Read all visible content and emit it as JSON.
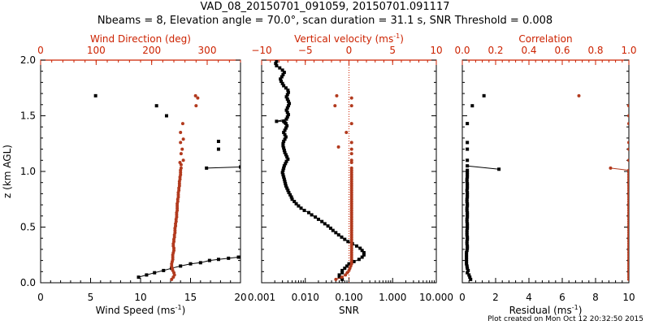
{
  "header": {
    "title": "VAD_08_20150701_091059, 20150701.091117",
    "subtitle": "Nbeams = 8, Elevation angle = 70.0°, scan duration = 31.1 s, SNR Threshold = 0.008"
  },
  "footer": {
    "created": "Plot created on Mon Oct 12 20:32:50 2015"
  },
  "colors": {
    "red_axis": "#cc2200",
    "black_series": "#000000",
    "red_series": "#b23a1e"
  },
  "chart_data": [
    {
      "type": "scatter",
      "ylabel": "z (km AGL)",
      "ylim": [
        0.0,
        2.0
      ],
      "y_ticks": [
        "0.0",
        "0.5",
        "1.0",
        "1.5",
        "2.0"
      ],
      "bottom_axis": {
        "label": "Wind Speed (ms",
        "superscript": "-1",
        "close": ")",
        "lim": [
          0,
          20
        ],
        "ticks": [
          "0",
          "5",
          "10",
          "15",
          "20"
        ]
      },
      "top_axis": {
        "label": "Wind Direction (deg)",
        "lim": [
          0,
          360
        ],
        "ticks": [
          "0",
          "100",
          "200",
          "300"
        ],
        "tick_values": [
          0,
          100,
          200,
          300
        ]
      },
      "series": [
        {
          "axis": "bottom",
          "color": "black",
          "connected": true,
          "x": [
            9.8,
            10.6,
            11.4,
            12.3,
            13.1,
            14.0,
            15.0,
            16.0,
            16.9,
            17.8,
            18.8,
            19.8,
            20.0
          ],
          "y": [
            0.05,
            0.07,
            0.09,
            0.11,
            0.13,
            0.15,
            0.17,
            0.18,
            0.2,
            0.21,
            0.22,
            0.23,
            0.23
          ]
        },
        {
          "axis": "bottom",
          "color": "black",
          "connected": true,
          "x": [
            16.6,
            20.0
          ],
          "y": [
            1.03,
            1.04
          ]
        },
        {
          "axis": "bottom",
          "color": "black",
          "connected": false,
          "x": [
            5.5,
            11.6,
            12.6,
            17.8,
            17.8
          ],
          "y": [
            1.68,
            1.59,
            1.5,
            1.27,
            1.2
          ]
        },
        {
          "axis": "top",
          "color": "red",
          "connected": true,
          "x": [
            236,
            239,
            241,
            240,
            238,
            237,
            236,
            236,
            237,
            238,
            238,
            238,
            239,
            240,
            240,
            239,
            239,
            240,
            240,
            241,
            241,
            242,
            242,
            242,
            243,
            243,
            244,
            244,
            245,
            245,
            245,
            246,
            246,
            246,
            246,
            247,
            247,
            248,
            248,
            248,
            249,
            249,
            250,
            250,
            250,
            251,
            251,
            252,
            252,
            252,
            253
          ],
          "y": [
            0.03,
            0.05,
            0.07,
            0.09,
            0.11,
            0.13,
            0.15,
            0.17,
            0.19,
            0.21,
            0.23,
            0.25,
            0.27,
            0.29,
            0.31,
            0.33,
            0.35,
            0.37,
            0.39,
            0.41,
            0.43,
            0.45,
            0.47,
            0.49,
            0.51,
            0.53,
            0.55,
            0.57,
            0.59,
            0.61,
            0.63,
            0.65,
            0.67,
            0.69,
            0.71,
            0.73,
            0.75,
            0.77,
            0.79,
            0.81,
            0.83,
            0.85,
            0.87,
            0.89,
            0.91,
            0.93,
            0.95,
            0.97,
            0.99,
            1.01,
            1.03
          ]
        },
        {
          "axis": "top",
          "color": "red",
          "connected": false,
          "x": [
            279,
            283,
            280,
            256,
            252,
            257,
            252,
            255,
            253,
            257,
            251,
            253
          ],
          "y": [
            1.68,
            1.66,
            1.59,
            1.43,
            1.35,
            1.29,
            1.26,
            1.2,
            1.16,
            1.1,
            1.08,
            1.06
          ]
        }
      ]
    },
    {
      "type": "scatter",
      "bottom_axis": {
        "label": "SNR",
        "scale": "log",
        "lim": [
          0.001,
          10
        ],
        "ticks": [
          "0.001",
          "0.010",
          "0.100",
          "1.000",
          "10.000"
        ],
        "tick_values": [
          0.001,
          0.01,
          0.1,
          1,
          10
        ]
      },
      "top_axis": {
        "label": "Vertical velocity (ms",
        "superscript": "-1",
        "close": ")",
        "lim": [
          -10,
          10
        ],
        "ticks": [
          "−10",
          "−5",
          "0",
          "5",
          "10"
        ],
        "tick_values": [
          -10,
          -5,
          0,
          5,
          10
        ],
        "reference_line": 0
      },
      "series": [
        {
          "axis": "bottom",
          "color": "black",
          "connected": true,
          "x": [
            0.07,
            0.06,
            0.06,
            0.07,
            0.07,
            0.08,
            0.09,
            0.1,
            0.13,
            0.17,
            0.2,
            0.22,
            0.22,
            0.2,
            0.18,
            0.15,
            0.12,
            0.095,
            0.08,
            0.068,
            0.058,
            0.05,
            0.043,
            0.038,
            0.033,
            0.028,
            0.024,
            0.02,
            0.017,
            0.014,
            0.012,
            0.0095,
            0.008,
            0.007,
            0.0062,
            0.0056,
            0.005,
            0.0048,
            0.0045,
            0.0042,
            0.004,
            0.0038,
            0.0036,
            0.0035,
            0.0034,
            0.0033,
            0.0032,
            0.0031,
            0.003,
            0.0031,
            0.0032,
            0.0033,
            0.0035,
            0.0037,
            0.004,
            0.0038,
            0.0036,
            0.0034,
            0.0033,
            0.0032,
            0.0031,
            0.0031,
            0.0032,
            0.0034,
            0.0036,
            0.0034,
            0.0032,
            0.0034,
            0.0036,
            0.0038,
            0.0036,
            0.0034,
            0.0032,
            0.0022,
            0.0037,
            0.0039,
            0.0041,
            0.0039,
            0.0037,
            0.0039,
            0.0041,
            0.0043,
            0.0041,
            0.0039,
            0.0037,
            0.0039,
            0.0041,
            0.004,
            0.0036,
            0.0032,
            0.003,
            0.0028,
            0.0027,
            0.0029,
            0.0031,
            0.0033,
            0.003,
            0.0026,
            0.0022,
            0.0021,
            0.0022
          ],
          "y": [
            0.03,
            0.05,
            0.07,
            0.09,
            0.11,
            0.13,
            0.15,
            0.17,
            0.19,
            0.21,
            0.23,
            0.25,
            0.27,
            0.29,
            0.31,
            0.33,
            0.35,
            0.37,
            0.39,
            0.41,
            0.43,
            0.45,
            0.47,
            0.49,
            0.51,
            0.53,
            0.55,
            0.57,
            0.59,
            0.61,
            0.63,
            0.65,
            0.67,
            0.69,
            0.71,
            0.73,
            0.75,
            0.77,
            0.79,
            0.81,
            0.83,
            0.85,
            0.87,
            0.89,
            0.91,
            0.93,
            0.95,
            0.97,
            0.99,
            1.01,
            1.03,
            1.05,
            1.07,
            1.09,
            1.11,
            1.13,
            1.15,
            1.17,
            1.19,
            1.21,
            1.23,
            1.25,
            1.27,
            1.29,
            1.31,
            1.33,
            1.35,
            1.37,
            1.39,
            1.41,
            1.43,
            1.44,
            1.45,
            1.45,
            1.47,
            1.49,
            1.51,
            1.53,
            1.55,
            1.57,
            1.59,
            1.61,
            1.63,
            1.65,
            1.67,
            1.69,
            1.71,
            1.73,
            1.75,
            1.77,
            1.79,
            1.81,
            1.83,
            1.85,
            1.87,
            1.89,
            1.91,
            1.93,
            1.95,
            1.97,
            1.99
          ]
        },
        {
          "axis": "top",
          "color": "red",
          "connected": true,
          "x": [
            -1.5,
            -0.8,
            -0.4,
            -0.2,
            0.0,
            0.1,
            0.2,
            0.3,
            0.3,
            0.3,
            0.3,
            0.3,
            0.3,
            0.3,
            0.3,
            0.3,
            0.3,
            0.3,
            0.3,
            0.3,
            0.3,
            0.3,
            0.3,
            0.3,
            0.3,
            0.3,
            0.3,
            0.3,
            0.3,
            0.3,
            0.3,
            0.3,
            0.3,
            0.3,
            0.3,
            0.3,
            0.3,
            0.3,
            0.3,
            0.3,
            0.3,
            0.3,
            0.3,
            0.3,
            0.3,
            0.3,
            0.3,
            0.3,
            0.3,
            0.3,
            0.3
          ],
          "y": [
            0.03,
            0.05,
            0.07,
            0.09,
            0.11,
            0.13,
            0.15,
            0.17,
            0.19,
            0.21,
            0.23,
            0.25,
            0.27,
            0.29,
            0.31,
            0.33,
            0.35,
            0.37,
            0.39,
            0.41,
            0.43,
            0.45,
            0.47,
            0.49,
            0.51,
            0.53,
            0.55,
            0.57,
            0.59,
            0.61,
            0.63,
            0.65,
            0.67,
            0.69,
            0.71,
            0.73,
            0.75,
            0.77,
            0.79,
            0.81,
            0.83,
            0.85,
            0.87,
            0.89,
            0.91,
            0.93,
            0.95,
            0.97,
            0.99,
            1.01,
            1.03
          ]
        },
        {
          "axis": "top",
          "color": "red",
          "connected": false,
          "x": [
            -1.4,
            0.3,
            -1.6,
            0.3,
            0.3,
            -0.3,
            0.3,
            -1.2,
            0.3,
            0.3,
            0.3,
            0.3
          ],
          "y": [
            1.68,
            1.66,
            1.59,
            1.59,
            1.43,
            1.35,
            1.26,
            1.22,
            1.2,
            1.16,
            1.1,
            1.08
          ]
        }
      ]
    },
    {
      "type": "scatter",
      "bottom_axis": {
        "label": "Residual (ms",
        "superscript": "-1",
        "close": ")",
        "lim": [
          0,
          10
        ],
        "ticks": [
          "0",
          "2",
          "4",
          "6",
          "8",
          "10"
        ],
        "tick_values": [
          0,
          2,
          4,
          6,
          8,
          10
        ]
      },
      "top_axis": {
        "label": "Correlation",
        "lim": [
          0,
          1
        ],
        "ticks": [
          "0.0",
          "0.2",
          "0.4",
          "0.6",
          "0.8",
          "1.0"
        ],
        "tick_values": [
          0,
          0.2,
          0.4,
          0.6,
          0.8,
          1.0
        ]
      },
      "series": [
        {
          "axis": "bottom",
          "color": "black",
          "connected": true,
          "x": [
            0.5,
            0.45,
            0.4,
            0.3,
            0.35,
            0.3,
            0.28,
            0.25,
            0.25,
            0.25,
            0.25,
            0.25,
            0.25,
            0.28,
            0.3,
            0.3,
            0.28,
            0.28,
            0.3,
            0.3,
            0.28,
            0.28,
            0.28,
            0.3,
            0.3,
            0.3,
            0.28,
            0.28,
            0.3,
            0.3,
            0.3,
            0.28,
            0.28,
            0.3,
            0.3,
            0.28,
            0.28,
            0.3,
            0.3,
            0.3,
            0.28,
            0.3,
            0.3,
            0.3,
            0.28,
            0.28,
            0.3,
            0.3,
            0.3,
            0.3
          ],
          "y": [
            0.03,
            0.05,
            0.07,
            0.09,
            0.11,
            0.13,
            0.15,
            0.17,
            0.19,
            0.21,
            0.23,
            0.25,
            0.27,
            0.29,
            0.31,
            0.33,
            0.35,
            0.37,
            0.39,
            0.41,
            0.43,
            0.45,
            0.47,
            0.49,
            0.51,
            0.53,
            0.55,
            0.57,
            0.59,
            0.61,
            0.63,
            0.65,
            0.67,
            0.69,
            0.71,
            0.73,
            0.75,
            0.77,
            0.79,
            0.81,
            0.83,
            0.85,
            0.87,
            0.89,
            0.91,
            0.93,
            0.95,
            0.97,
            0.99,
            1.01
          ]
        },
        {
          "axis": "bottom",
          "color": "black",
          "connected": true,
          "x": [
            0.3,
            2.2
          ],
          "y": [
            1.05,
            1.02
          ]
        },
        {
          "axis": "bottom",
          "color": "black",
          "connected": false,
          "x": [
            1.3,
            0.6,
            0.3,
            0.3,
            0.3,
            0.3
          ],
          "y": [
            1.68,
            1.59,
            1.43,
            1.26,
            1.2,
            1.1
          ]
        },
        {
          "axis": "top",
          "color": "red",
          "connected": true,
          "x": [
            1.0,
            1.0,
            1.0,
            1.0,
            1.0,
            1.0,
            1.0,
            1.0,
            1.0,
            1.0,
            1.0,
            1.0,
            1.0,
            1.0,
            1.0,
            1.0,
            1.0,
            1.0,
            1.0,
            1.0,
            1.0,
            1.0,
            1.0,
            1.0,
            1.0,
            1.0,
            1.0,
            1.0,
            1.0,
            1.0,
            1.0,
            1.0,
            1.0,
            1.0,
            1.0,
            1.0,
            1.0,
            1.0,
            1.0,
            1.0,
            1.0,
            1.0,
            1.0,
            1.0,
            1.0,
            1.0,
            1.0,
            1.0,
            1.0,
            1.0,
            0.89
          ],
          "y": [
            0.03,
            0.05,
            0.07,
            0.09,
            0.11,
            0.13,
            0.15,
            0.17,
            0.19,
            0.21,
            0.23,
            0.25,
            0.27,
            0.29,
            0.31,
            0.33,
            0.35,
            0.37,
            0.39,
            0.41,
            0.43,
            0.45,
            0.47,
            0.49,
            0.51,
            0.53,
            0.55,
            0.57,
            0.59,
            0.61,
            0.63,
            0.65,
            0.67,
            0.69,
            0.71,
            0.73,
            0.75,
            0.77,
            0.79,
            0.81,
            0.83,
            0.85,
            0.87,
            0.89,
            0.91,
            0.93,
            0.95,
            0.97,
            0.99,
            1.01,
            1.03
          ]
        },
        {
          "axis": "top",
          "color": "red",
          "connected": false,
          "x": [
            0.7,
            1.0,
            1.0,
            1.0,
            1.0,
            1.0,
            1.0
          ],
          "y": [
            1.68,
            1.59,
            1.5,
            1.43,
            1.26,
            1.2,
            1.1
          ]
        }
      ]
    }
  ]
}
